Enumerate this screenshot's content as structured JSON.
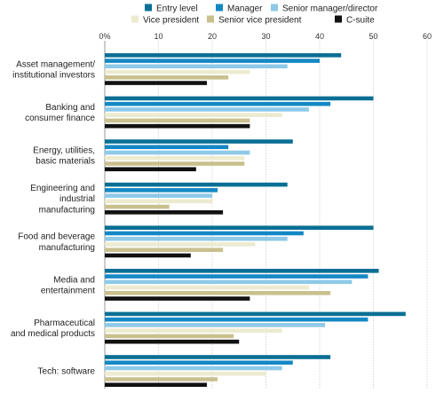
{
  "chart_data": {
    "type": "bar",
    "orientation": "horizontal",
    "title": "",
    "xlabel": "",
    "ylabel": "",
    "xlim": [
      0,
      60
    ],
    "x_ticks": [
      0,
      10,
      20,
      30,
      40,
      50,
      60
    ],
    "x_tick_labels": [
      "0%",
      "10",
      "20",
      "30",
      "40",
      "50",
      "60"
    ],
    "x_axis_position": "top",
    "grid": true,
    "legend_position": "top",
    "categories": [
      [
        "Asset management/",
        "institutional investors"
      ],
      [
        "Banking and",
        "consumer finance"
      ],
      [
        "Energy, utilities,",
        "basic materials"
      ],
      [
        "Engineering and",
        "industrial",
        "manufacturing"
      ],
      [
        "Food and beverage",
        "manufacturing"
      ],
      [
        "Media and",
        "entertainment"
      ],
      [
        "Pharmaceutical",
        "and medical products"
      ],
      [
        "Tech: software"
      ]
    ],
    "series": [
      {
        "name": "Entry level",
        "color": "#0a6f94",
        "values": [
          44,
          50,
          35,
          34,
          50,
          51,
          56,
          42
        ]
      },
      {
        "name": "Manager",
        "color": "#1488c4",
        "values": [
          40,
          42,
          23,
          21,
          37,
          49,
          49,
          35
        ]
      },
      {
        "name": "Senior manager/director",
        "color": "#8ec9e8",
        "values": [
          34,
          38,
          27,
          20,
          34,
          46,
          41,
          33
        ]
      },
      {
        "name": "Vice president",
        "color": "#ecebd0",
        "values": [
          27,
          33,
          26,
          20,
          28,
          38,
          33,
          30
        ]
      },
      {
        "name": "Senior vice president",
        "color": "#c9c08e",
        "values": [
          23,
          27,
          26,
          12,
          22,
          42,
          24,
          21
        ]
      },
      {
        "name": "C-suite",
        "color": "#111111",
        "values": [
          19,
          27,
          17,
          22,
          16,
          27,
          25,
          19
        ]
      }
    ]
  }
}
